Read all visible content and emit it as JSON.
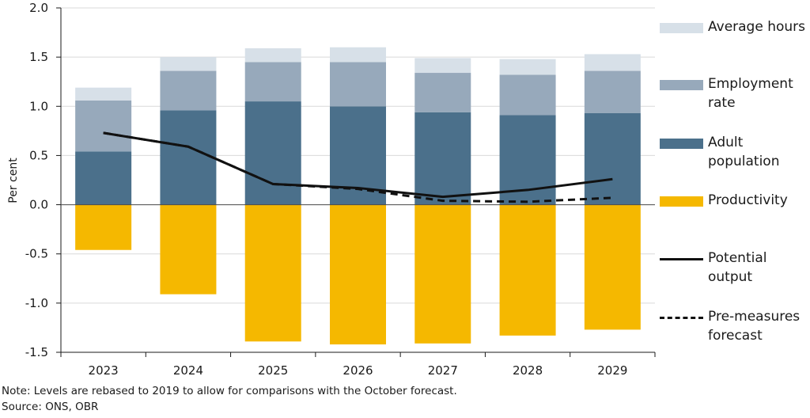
{
  "chart_data": {
    "type": "bar",
    "stacked": true,
    "categories": [
      "2023",
      "2024",
      "2025",
      "2026",
      "2027",
      "2028",
      "2029"
    ],
    "ylabel": "Per cent",
    "ylim": [
      -1.5,
      2.0
    ],
    "yticks": [
      "2.0",
      "1.5",
      "1.0",
      "0.5",
      "0.0",
      "-0.5",
      "-1.0",
      "-1.5"
    ],
    "series": [
      {
        "name": "Productivity",
        "color": "#f5b800",
        "values": [
          -0.46,
          -0.91,
          -1.39,
          -1.42,
          -1.41,
          -1.33,
          -1.27
        ]
      },
      {
        "name": "Adult population",
        "color": "#4b708b",
        "values": [
          0.54,
          0.96,
          1.05,
          1.0,
          0.94,
          0.91,
          0.93
        ]
      },
      {
        "name": "Employment rate",
        "color": "#97a9bb",
        "values": [
          0.52,
          0.4,
          0.4,
          0.45,
          0.4,
          0.41,
          0.43
        ]
      },
      {
        "name": "Average hours",
        "color": "#d7e0e8",
        "values": [
          0.13,
          0.14,
          0.14,
          0.15,
          0.15,
          0.16,
          0.17
        ]
      }
    ],
    "lines": [
      {
        "name": "Potential output",
        "style": "solid",
        "values": [
          0.73,
          0.59,
          0.21,
          0.17,
          0.08,
          0.15,
          0.26
        ]
      },
      {
        "name": "Pre-measures forecast",
        "style": "dashed",
        "values": [
          0.73,
          0.59,
          0.21,
          0.16,
          0.04,
          0.03,
          0.07
        ]
      }
    ]
  },
  "legend": [
    {
      "label": "Average hours",
      "kind": "swatch",
      "color": "#d7e0e8"
    },
    {
      "label": "Employment rate",
      "kind": "swatch",
      "color": "#97a9bb"
    },
    {
      "label": "Adult population",
      "kind": "swatch",
      "color": "#4b708b"
    },
    {
      "label": "Productivity",
      "kind": "swatch",
      "color": "#f5b800"
    },
    {
      "label": "Potential output",
      "kind": "line"
    },
    {
      "label": "Pre-measures forecast",
      "kind": "dashed"
    }
  ],
  "notes": {
    "note": "Note: Levels are rebased to 2019 to allow for comparisons with the October forecast.",
    "source": "Source: ONS, OBR"
  }
}
